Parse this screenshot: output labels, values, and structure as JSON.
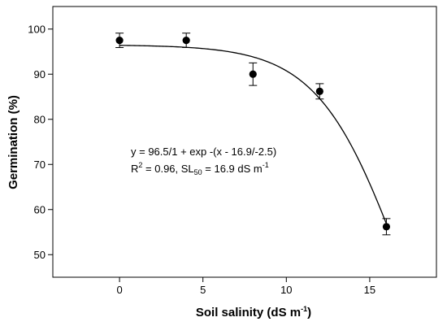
{
  "chart_data": {
    "type": "scatter",
    "xlabel": "Soil salinity (dS m",
    "xlabel_sup": "-1",
    "xlabel_end": ")",
    "ylabel": "Germination (%)",
    "xlim": [
      -4,
      19
    ],
    "ylim": [
      45,
      105
    ],
    "x_ticks": [
      0,
      5,
      10,
      15
    ],
    "y_ticks": [
      50,
      60,
      70,
      80,
      90,
      100
    ],
    "x_tick_labels": [
      "0",
      "5",
      "10",
      "15"
    ],
    "y_tick_labels": [
      "50",
      "60",
      "70",
      "80",
      "90",
      "100"
    ],
    "grid": false,
    "series": [
      {
        "marker": "filled-circle",
        "color": "#000000",
        "points": [
          {
            "x": 0,
            "y": 97.5,
            "err": 1.6
          },
          {
            "x": 4,
            "y": 97.5,
            "err": 1.6
          },
          {
            "x": 8,
            "y": 90.0,
            "err": 2.5
          },
          {
            "x": 12,
            "y": 86.2,
            "err": 1.7
          },
          {
            "x": 16,
            "y": 56.2,
            "err": 1.8
          }
        ]
      }
    ],
    "fit": {
      "model": "sigmoid",
      "a": 96.5,
      "x0": 16.9,
      "b": -2.5,
      "x_range": [
        0,
        16
      ]
    },
    "annotations": {
      "equation": "y = 96.5/1 + exp -(x - 16.9/-2.5)",
      "r2_prefix": "R",
      "r2_sup": "2",
      "r2_value": " = 0.96, SL",
      "sl_sub": "50",
      "sl_value": " =  16.9 dS m",
      "sl_sup": "-1"
    }
  }
}
